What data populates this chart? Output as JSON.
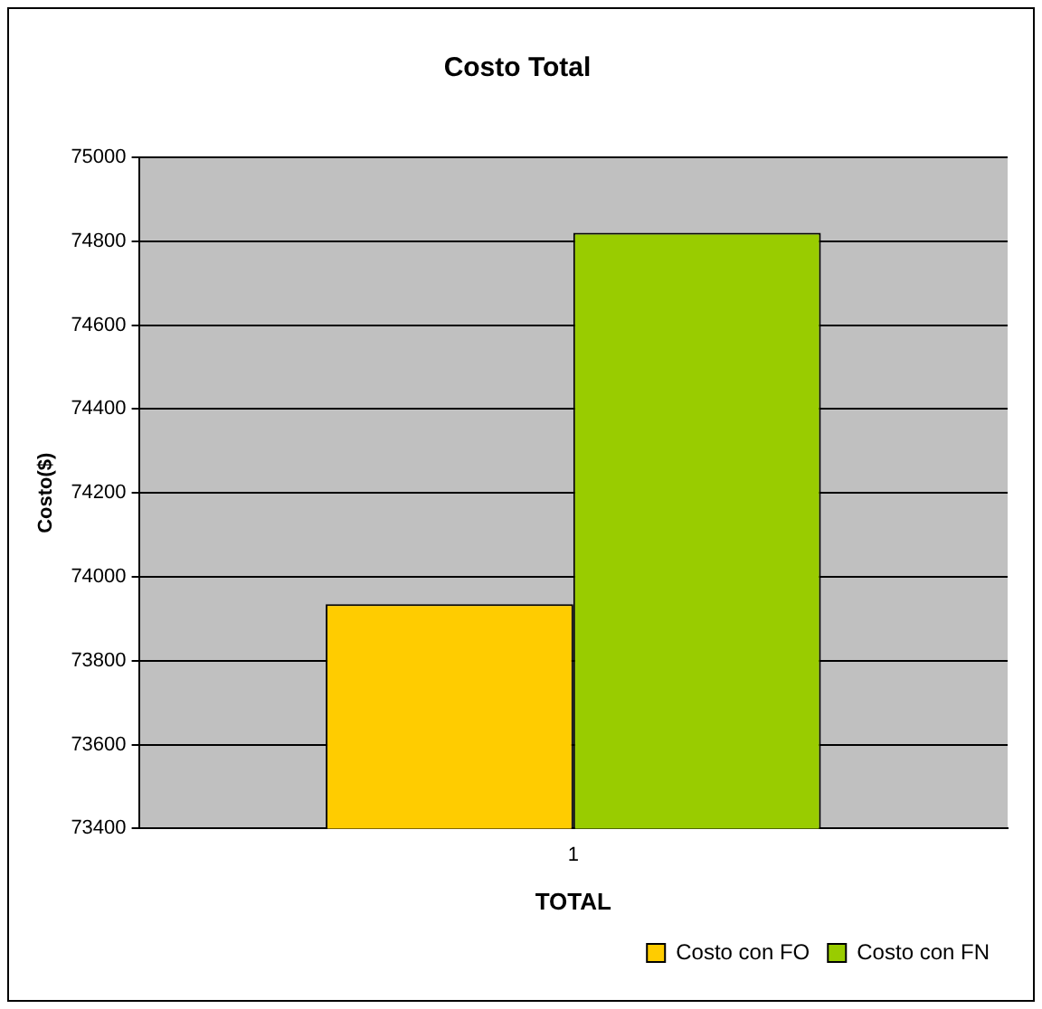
{
  "chart_data": {
    "type": "bar",
    "title": "Costo Total",
    "xlabel": "TOTAL",
    "ylabel": "Costo($)",
    "categories": [
      "1"
    ],
    "series": [
      {
        "name": "Costo con FO",
        "color": "#ffcc00",
        "values": [
          73935
        ]
      },
      {
        "name": "Costo con FN",
        "color": "#99cc00",
        "values": [
          74820
        ]
      }
    ],
    "ylim": [
      73400,
      75000
    ],
    "yticks": [
      73400,
      73600,
      73800,
      74000,
      74200,
      74400,
      74600,
      74800,
      75000
    ],
    "grid": "y",
    "legend": "bottom right"
  }
}
